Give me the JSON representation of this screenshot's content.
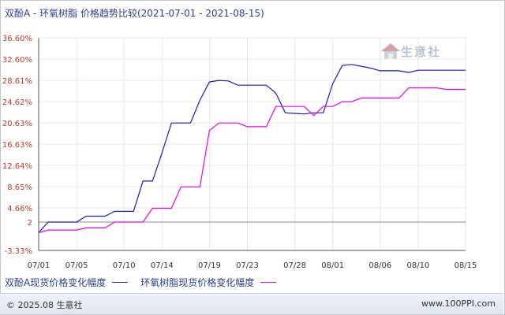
{
  "title": "双酚A - 环氧树脂 价格趋势比较(2021-07-01 - 2021-08-15)",
  "watermark_text": "生意社",
  "copyright": "© 2025.08 生意社",
  "site": "www.100PPI.com",
  "colors": {
    "series1": "#1a1acc",
    "series2": "#ee00ee",
    "axis": "#555555",
    "grid": "#e8e8e8",
    "tick_y": "#c0392b"
  },
  "chart_data": {
    "type": "line",
    "title": "双酚A - 环氧树脂 价格趋势比较(2021-07-01 - 2021-08-15)",
    "xlabel": "",
    "ylabel": "",
    "x_range": [
      "2021-07-01",
      "2021-08-15"
    ],
    "ylim": [
      -3.33,
      36.6
    ],
    "y_ticks": [
      "36.60%",
      "32.60%",
      "28.61%",
      "24.62%",
      "20.63%",
      "16.63%",
      "12.64%",
      "8.65%",
      "4.66%",
      "2",
      "-3.33%"
    ],
    "y_tick_values": [
      36.6,
      32.6,
      28.61,
      24.62,
      20.63,
      16.63,
      12.64,
      8.65,
      4.66,
      2,
      -3.33
    ],
    "x_ticks": [
      "07/01",
      "07/05",
      "07/10",
      "07/14",
      "07/19",
      "07/23",
      "07/28",
      "08/01",
      "08/06",
      "08/10",
      "08/15"
    ],
    "x_tick_dates": [
      "2021-07-01",
      "2021-07-05",
      "2021-07-10",
      "2021-07-14",
      "2021-07-19",
      "2021-07-23",
      "2021-07-28",
      "2021-08-01",
      "2021-08-06",
      "2021-08-10",
      "2021-08-15"
    ],
    "grid": true,
    "legend_position": "bottom-left",
    "series": [
      {
        "name": "双酚A现货价格变化幅度",
        "color": "#1a1acc",
        "points": [
          [
            "2021-07-01",
            0.0
          ],
          [
            "2021-07-02",
            2.0
          ],
          [
            "2021-07-05",
            2.0
          ],
          [
            "2021-07-06",
            3.1
          ],
          [
            "2021-07-08",
            3.1
          ],
          [
            "2021-07-09",
            4.0
          ],
          [
            "2021-07-11",
            4.0
          ],
          [
            "2021-07-12",
            9.7
          ],
          [
            "2021-07-13",
            9.7
          ],
          [
            "2021-07-14",
            15.0
          ],
          [
            "2021-07-15",
            20.6
          ],
          [
            "2021-07-17",
            20.6
          ],
          [
            "2021-07-18",
            24.9
          ],
          [
            "2021-07-19",
            28.3
          ],
          [
            "2021-07-20",
            28.6
          ],
          [
            "2021-07-21",
            28.5
          ],
          [
            "2021-07-22",
            27.7
          ],
          [
            "2021-07-25",
            27.7
          ],
          [
            "2021-07-26",
            26.2
          ],
          [
            "2021-07-27",
            22.5
          ],
          [
            "2021-07-29",
            22.3
          ],
          [
            "2021-07-30",
            22.5
          ],
          [
            "2021-07-31",
            22.5
          ],
          [
            "2021-08-01",
            28.0
          ],
          [
            "2021-08-02",
            31.4
          ],
          [
            "2021-08-03",
            31.6
          ],
          [
            "2021-08-05",
            30.9
          ],
          [
            "2021-08-06",
            30.4
          ],
          [
            "2021-08-08",
            30.4
          ],
          [
            "2021-08-09",
            30.1
          ],
          [
            "2021-08-10",
            30.5
          ],
          [
            "2021-08-15",
            30.5
          ]
        ]
      },
      {
        "name": "环氧树脂现货价格变化幅度",
        "color": "#ee00ee",
        "points": [
          [
            "2021-07-01",
            0.0
          ],
          [
            "2021-07-02",
            0.5
          ],
          [
            "2021-07-05",
            0.5
          ],
          [
            "2021-07-06",
            0.9
          ],
          [
            "2021-07-08",
            0.9
          ],
          [
            "2021-07-09",
            2.0
          ],
          [
            "2021-07-12",
            2.0
          ],
          [
            "2021-07-13",
            4.6
          ],
          [
            "2021-07-15",
            4.6
          ],
          [
            "2021-07-16",
            8.6
          ],
          [
            "2021-07-18",
            8.6
          ],
          [
            "2021-07-19",
            19.2
          ],
          [
            "2021-07-20",
            20.6
          ],
          [
            "2021-07-22",
            20.6
          ],
          [
            "2021-07-23",
            19.9
          ],
          [
            "2021-07-25",
            19.9
          ],
          [
            "2021-07-26",
            23.7
          ],
          [
            "2021-07-29",
            23.7
          ],
          [
            "2021-07-30",
            22.0
          ],
          [
            "2021-07-31",
            23.7
          ],
          [
            "2021-08-01",
            23.7
          ],
          [
            "2021-08-02",
            24.6
          ],
          [
            "2021-08-03",
            24.6
          ],
          [
            "2021-08-04",
            25.3
          ],
          [
            "2021-08-08",
            25.3
          ],
          [
            "2021-08-09",
            27.2
          ],
          [
            "2021-08-12",
            27.2
          ],
          [
            "2021-08-13",
            26.9
          ],
          [
            "2021-08-15",
            26.9
          ]
        ]
      }
    ]
  }
}
